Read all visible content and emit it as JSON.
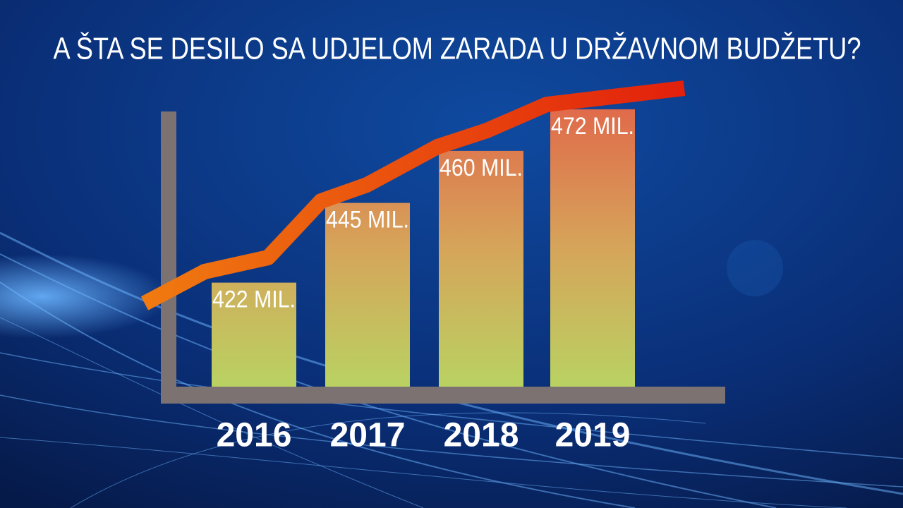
{
  "chart_data": {
    "type": "bar",
    "title": "A ŠTA SE DESILO SA UDJELOM ZARADA U DRŽAVNOM BUDŽETU?",
    "categories": [
      "2016",
      "2017",
      "2018",
      "2019"
    ],
    "values": [
      422,
      445,
      460,
      472
    ],
    "value_labels": [
      "422 MIL.",
      "445 MIL.",
      "460 MIL.",
      "472 MIL."
    ],
    "ylim": [
      392,
      473
    ]
  }
}
